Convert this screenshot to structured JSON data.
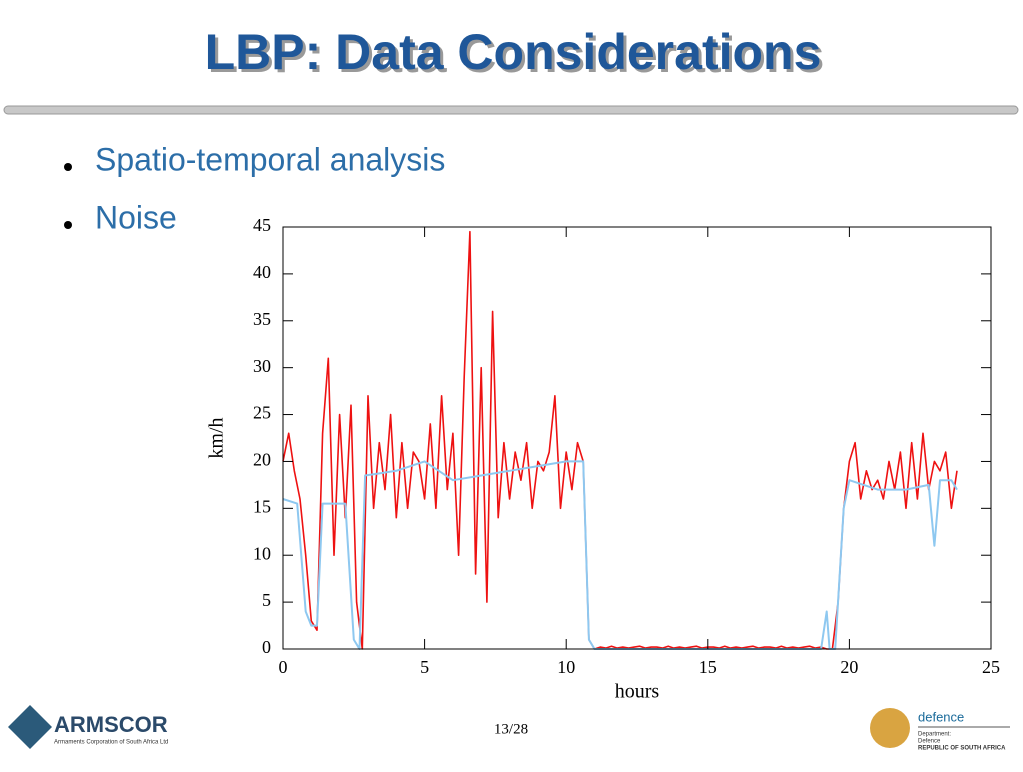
{
  "slide": {
    "title": "LBP: Data Considerations",
    "bullets": [
      "Spatio-temporal analysis",
      "Noise"
    ],
    "page": "13/28",
    "left_logo": {
      "name": "ARMSCOR",
      "subtitle": "Armaments Corporation of South Africa Ltd"
    },
    "right_logo": {
      "name": "defence",
      "line1": "Department:",
      "line2": "Defence",
      "line3": "REPUBLIC OF SOUTH AFRICA"
    }
  },
  "chart_data": {
    "type": "line",
    "xlabel": "hours",
    "ylabel": "km/h",
    "xlim": [
      0,
      25
    ],
    "xticks": [
      0,
      5,
      10,
      15,
      20,
      25
    ],
    "ylim": [
      0,
      45
    ],
    "yticks": [
      0,
      5,
      10,
      15,
      20,
      25,
      30,
      35,
      40,
      45
    ],
    "series": [
      {
        "color": "#ee1111",
        "x": [
          0,
          0.2,
          0.4,
          0.6,
          0.8,
          1,
          1.2,
          1.4,
          1.6,
          1.8,
          2,
          2.2,
          2.4,
          2.6,
          2.8,
          3,
          3.2,
          3.4,
          3.6,
          3.8,
          4,
          4.2,
          4.4,
          4.6,
          4.8,
          5,
          5.2,
          5.4,
          5.6,
          5.8,
          6,
          6.2,
          6.4,
          6.6,
          6.8,
          7,
          7.2,
          7.4,
          7.6,
          7.8,
          8,
          8.2,
          8.4,
          8.6,
          8.8,
          9,
          9.2,
          9.4,
          9.6,
          9.8,
          10,
          10.2,
          10.4,
          10.6,
          10.8,
          11,
          11.2,
          11.4,
          11.6,
          11.8,
          12,
          12.2,
          12.4,
          12.6,
          12.8,
          13,
          13.2,
          13.4,
          13.6,
          13.8,
          14,
          14.2,
          14.4,
          14.6,
          14.8,
          15,
          15.2,
          15.4,
          15.6,
          15.8,
          16,
          16.2,
          16.4,
          16.6,
          16.8,
          17,
          17.2,
          17.4,
          17.6,
          17.8,
          18,
          18.2,
          18.4,
          18.6,
          18.8,
          19,
          19.2,
          19.4,
          19.6,
          19.8,
          20,
          20.2,
          20.4,
          20.6,
          20.8,
          21,
          21.2,
          21.4,
          21.6,
          21.8,
          22,
          22.2,
          22.4,
          22.6,
          22.8,
          23,
          23.2,
          23.4,
          23.6,
          23.8
        ],
        "values": [
          20,
          23,
          19,
          16,
          10,
          3,
          2,
          23,
          31,
          10,
          25,
          14,
          26,
          5,
          0,
          27,
          15,
          22,
          17,
          25,
          14,
          22,
          15,
          21,
          20,
          16,
          24,
          15,
          27,
          17,
          23,
          10,
          29,
          44.5,
          8,
          30,
          5,
          36,
          14,
          22,
          16,
          21,
          18,
          22,
          15,
          20,
          19,
          21,
          27,
          15,
          21,
          17,
          22,
          20,
          1,
          0,
          0.2,
          0.1,
          0.3,
          0.1,
          0.2,
          0.1,
          0.2,
          0.3,
          0.1,
          0.2,
          0.2,
          0.1,
          0.3,
          0.1,
          0.2,
          0.1,
          0.2,
          0.3,
          0.1,
          0.2,
          0.2,
          0.1,
          0.3,
          0.1,
          0.2,
          0.1,
          0.2,
          0.3,
          0.1,
          0.2,
          0.2,
          0.1,
          0.3,
          0.1,
          0.2,
          0.1,
          0.2,
          0.3,
          0.1,
          0.2,
          0,
          0,
          5,
          15,
          20,
          22,
          16,
          19,
          17,
          18,
          16,
          20,
          17,
          21,
          15,
          22,
          16,
          23,
          17,
          20,
          19,
          21,
          15,
          19
        ]
      },
      {
        "color": "#8ec8f0",
        "x": [
          0,
          0.5,
          0.8,
          1,
          1.2,
          1.4,
          2.2,
          2.5,
          2.7,
          2.9,
          4,
          5,
          6,
          7,
          8,
          9,
          10,
          10.6,
          10.8,
          11,
          13,
          15,
          17,
          19,
          19.2,
          19.3,
          19.5,
          19.8,
          20,
          21,
          22,
          22.8,
          23,
          23.2,
          23.6,
          23.8
        ],
        "values": [
          16,
          15.5,
          4,
          2.5,
          2.5,
          15.5,
          15.5,
          1,
          0,
          18.5,
          19,
          20,
          18,
          18.5,
          19,
          19.5,
          20,
          20,
          1,
          0,
          0,
          0,
          0,
          0,
          4,
          0,
          0,
          15,
          18,
          17,
          17,
          17.5,
          11,
          18,
          18,
          17
        ]
      }
    ]
  }
}
